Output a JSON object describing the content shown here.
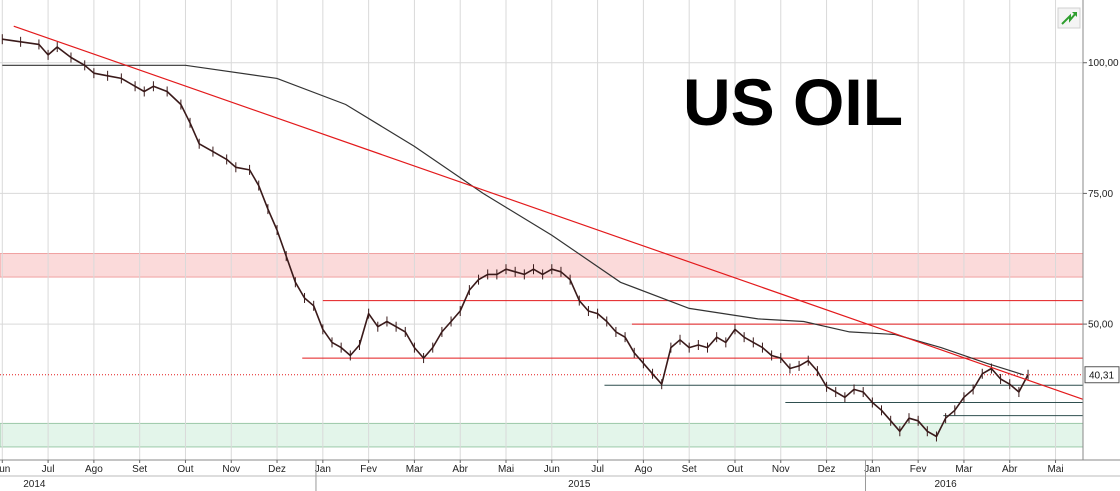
{
  "chart_data": {
    "type": "line",
    "title": "US OIL",
    "x_unit": "month",
    "price_label": "40,31",
    "last_price": 40.31,
    "y_ticks": [
      {
        "value": 100,
        "label": "100,00"
      },
      {
        "value": 75,
        "label": "75,00"
      },
      {
        "value": 50,
        "label": "50,00"
      }
    ],
    "y_range": [
      24,
      112
    ],
    "x_ticks": [
      {
        "month": 0,
        "label": "Jun"
      },
      {
        "month": 1,
        "label": "Jul"
      },
      {
        "month": 2,
        "label": "Ago"
      },
      {
        "month": 3,
        "label": "Set"
      },
      {
        "month": 4,
        "label": "Out"
      },
      {
        "month": 5,
        "label": "Nov"
      },
      {
        "month": 6,
        "label": "Dez"
      },
      {
        "month": 7,
        "label": "Jan"
      },
      {
        "month": 8,
        "label": "Fev"
      },
      {
        "month": 9,
        "label": "Mar"
      },
      {
        "month": 10,
        "label": "Abr"
      },
      {
        "month": 11,
        "label": "Mai"
      },
      {
        "month": 12,
        "label": "Jun"
      },
      {
        "month": 13,
        "label": "Jul"
      },
      {
        "month": 14,
        "label": "Ago"
      },
      {
        "month": 15,
        "label": "Set"
      },
      {
        "month": 16,
        "label": "Out"
      },
      {
        "month": 17,
        "label": "Nov"
      },
      {
        "month": 18,
        "label": "Dez"
      },
      {
        "month": 19,
        "label": "Jan"
      },
      {
        "month": 20,
        "label": "Fev"
      },
      {
        "month": 21,
        "label": "Mar"
      },
      {
        "month": 22,
        "label": "Abr"
      },
      {
        "month": 23,
        "label": "Mai"
      }
    ],
    "years": [
      {
        "month": 0.7,
        "label": "2014"
      },
      {
        "month": 12.6,
        "label": "2015"
      },
      {
        "month": 20.6,
        "label": "2016"
      }
    ],
    "year_boundaries": [
      6.85,
      18.85
    ],
    "x_range": [
      -0.05,
      23.6
    ],
    "price_series": [
      [
        0.0,
        104.5
      ],
      [
        0.4,
        104.0
      ],
      [
        0.8,
        103.5
      ],
      [
        1.0,
        101.5
      ],
      [
        1.2,
        103.0
      ],
      [
        1.5,
        101.0
      ],
      [
        1.8,
        99.5
      ],
      [
        2.0,
        98.0
      ],
      [
        2.3,
        97.5
      ],
      [
        2.6,
        97.0
      ],
      [
        2.9,
        95.5
      ],
      [
        3.1,
        94.5
      ],
      [
        3.3,
        95.5
      ],
      [
        3.6,
        94.5
      ],
      [
        3.9,
        92.0
      ],
      [
        4.1,
        88.5
      ],
      [
        4.3,
        84.5
      ],
      [
        4.6,
        83.0
      ],
      [
        4.9,
        81.5
      ],
      [
        5.1,
        80.0
      ],
      [
        5.4,
        79.5
      ],
      [
        5.6,
        76.5
      ],
      [
        5.8,
        72.0
      ],
      [
        6.0,
        68.0
      ],
      [
        6.2,
        63.0
      ],
      [
        6.4,
        58.0
      ],
      [
        6.6,
        55.0
      ],
      [
        6.8,
        53.5
      ],
      [
        7.0,
        49.0
      ],
      [
        7.2,
        46.5
      ],
      [
        7.4,
        45.5
      ],
      [
        7.6,
        44.0
      ],
      [
        7.8,
        46.0
      ],
      [
        8.0,
        52.0
      ],
      [
        8.2,
        49.5
      ],
      [
        8.4,
        50.5
      ],
      [
        8.6,
        49.5
      ],
      [
        8.8,
        48.5
      ],
      [
        9.0,
        45.5
      ],
      [
        9.2,
        43.5
      ],
      [
        9.4,
        45.5
      ],
      [
        9.6,
        48.5
      ],
      [
        9.8,
        50.5
      ],
      [
        10.0,
        52.5
      ],
      [
        10.2,
        56.5
      ],
      [
        10.4,
        58.5
      ],
      [
        10.6,
        59.5
      ],
      [
        10.8,
        59.5
      ],
      [
        11.0,
        60.5
      ],
      [
        11.2,
        60.0
      ],
      [
        11.4,
        59.5
      ],
      [
        11.6,
        60.5
      ],
      [
        11.8,
        59.5
      ],
      [
        12.0,
        60.5
      ],
      [
        12.2,
        60.0
      ],
      [
        12.4,
        58.5
      ],
      [
        12.6,
        54.5
      ],
      [
        12.8,
        52.5
      ],
      [
        13.0,
        52.0
      ],
      [
        13.2,
        50.5
      ],
      [
        13.4,
        48.5
      ],
      [
        13.6,
        47.5
      ],
      [
        13.8,
        44.5
      ],
      [
        14.0,
        42.5
      ],
      [
        14.2,
        40.5
      ],
      [
        14.4,
        38.5
      ],
      [
        14.6,
        45.5
      ],
      [
        14.8,
        47.0
      ],
      [
        15.0,
        45.5
      ],
      [
        15.2,
        46.0
      ],
      [
        15.4,
        45.5
      ],
      [
        15.6,
        47.5
      ],
      [
        15.8,
        46.5
      ],
      [
        16.0,
        49.0
      ],
      [
        16.2,
        47.5
      ],
      [
        16.4,
        46.5
      ],
      [
        16.6,
        45.5
      ],
      [
        16.8,
        44.0
      ],
      [
        17.0,
        43.5
      ],
      [
        17.2,
        41.5
      ],
      [
        17.4,
        42.0
      ],
      [
        17.6,
        43.0
      ],
      [
        17.8,
        41.0
      ],
      [
        18.0,
        38.0
      ],
      [
        18.2,
        37.0
      ],
      [
        18.4,
        36.0
      ],
      [
        18.6,
        37.5
      ],
      [
        18.8,
        37.0
      ],
      [
        19.0,
        35.0
      ],
      [
        19.2,
        33.5
      ],
      [
        19.4,
        31.5
      ],
      [
        19.6,
        29.5
      ],
      [
        19.8,
        32.0
      ],
      [
        20.0,
        31.5
      ],
      [
        20.2,
        29.5
      ],
      [
        20.4,
        28.5
      ],
      [
        20.6,
        32.0
      ],
      [
        20.8,
        33.5
      ],
      [
        21.0,
        36.0
      ],
      [
        21.2,
        37.5
      ],
      [
        21.4,
        40.5
      ],
      [
        21.6,
        41.5
      ],
      [
        21.8,
        39.5
      ],
      [
        22.0,
        38.5
      ],
      [
        22.2,
        37.0
      ],
      [
        22.4,
        40.31
      ]
    ],
    "moving_average": [
      [
        0.0,
        99.5
      ],
      [
        4.0,
        99.5
      ],
      [
        6.0,
        97.0
      ],
      [
        7.5,
        92.0
      ],
      [
        9.0,
        84.0
      ],
      [
        10.5,
        75.0
      ],
      [
        12.0,
        67.0
      ],
      [
        13.5,
        58.0
      ],
      [
        15.0,
        53.0
      ],
      [
        16.5,
        51.0
      ],
      [
        17.5,
        50.5
      ],
      [
        18.5,
        48.5
      ],
      [
        19.5,
        48.0
      ],
      [
        20.5,
        45.5
      ],
      [
        21.5,
        42.5
      ],
      [
        22.3,
        40.3
      ]
    ],
    "resistance_trendline": [
      [
        0.25,
        107.0
      ],
      [
        23.6,
        35.6
      ]
    ],
    "horizontal_lines": [
      {
        "from_month": 7.0,
        "to_month": 23.6,
        "value": 54.5,
        "color": "#e31a1c"
      },
      {
        "from_month": 13.75,
        "to_month": 23.6,
        "value": 50.0,
        "color": "#e31a1c"
      },
      {
        "from_month": 6.55,
        "to_month": 23.6,
        "value": 43.5,
        "color": "#e31a1c"
      },
      {
        "from_month": 13.15,
        "to_month": 23.6,
        "value": 38.3,
        "color": "#2f4f4f"
      },
      {
        "from_month": 17.1,
        "to_month": 23.6,
        "value": 35.0,
        "color": "#2f4f4f"
      },
      {
        "from_month": 20.55,
        "to_month": 23.6,
        "value": 32.5,
        "color": "#2f4f4f"
      }
    ],
    "price_level_line": {
      "value": 40.31,
      "color": "#e31a1c",
      "style": "dotted"
    },
    "zones": [
      {
        "from": 59.0,
        "to": 63.5,
        "color": "#fbdada",
        "stroke": "#f0a0a0"
      },
      {
        "from": 26.5,
        "to": 31.0,
        "color": "#e3f5ea",
        "stroke": "#9cc9a9"
      }
    ],
    "colors": {
      "price": "#3a1a1a",
      "moving_average": "#333333",
      "trend": "#e31a1c",
      "grid": "#d9d9d9",
      "badge_arrow": "#2e9e2e"
    }
  }
}
